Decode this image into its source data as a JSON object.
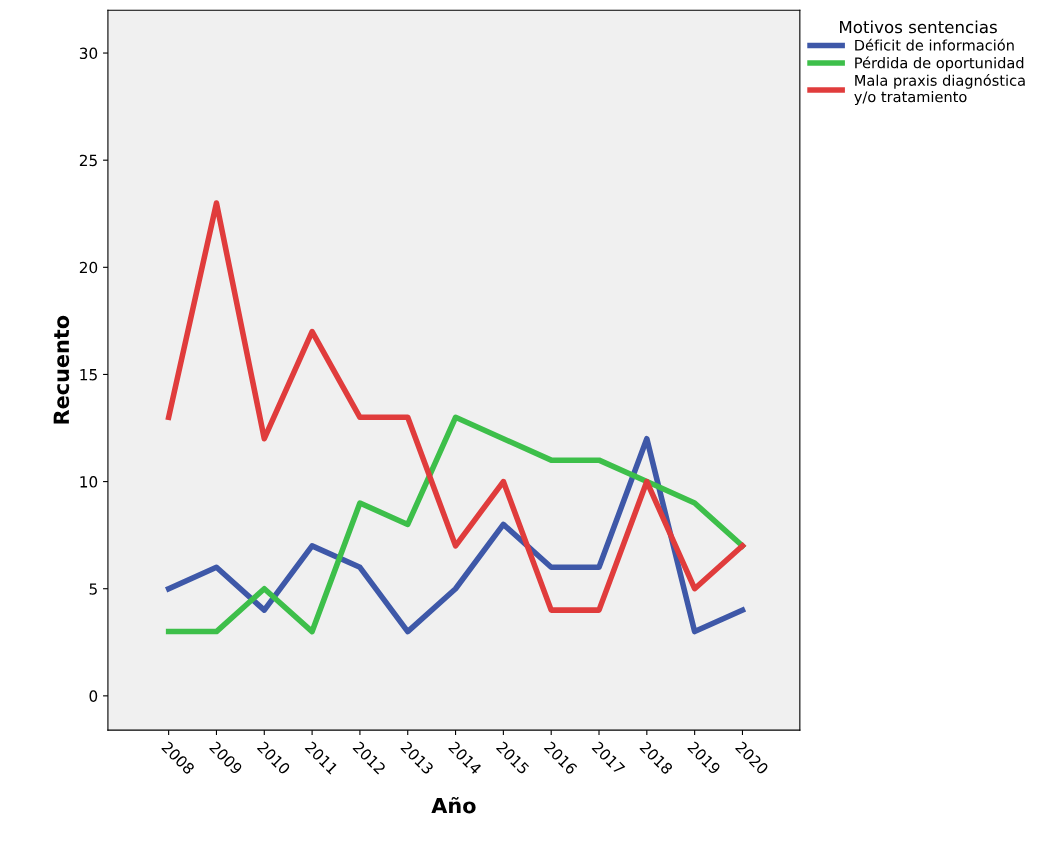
{
  "chart_data": {
    "type": "line",
    "xlabel": "Año",
    "ylabel": "Recuento",
    "legend_title": "Motivos sentencias",
    "categories": [
      "2008",
      "2009",
      "2010",
      "2011",
      "2012",
      "2013",
      "2014",
      "2015",
      "2016",
      "2017",
      "2018",
      "2019",
      "2020"
    ],
    "series": [
      {
        "name": "Déficit de información",
        "color": "#3e58a8",
        "values": [
          5,
          6,
          4,
          7,
          6,
          3,
          5,
          8,
          6,
          6,
          12,
          3,
          4
        ]
      },
      {
        "name": "Pérdida de oportunidad",
        "color": "#3dbf4a",
        "values": [
          3,
          3,
          5,
          3,
          9,
          8,
          13,
          12,
          11,
          11,
          10,
          9,
          7
        ]
      },
      {
        "name": "Mala praxis diagnóstica\ny/o tratamiento",
        "color": "#e03c3c",
        "values": [
          13,
          23,
          12,
          17,
          13,
          13,
          7,
          10,
          4,
          4,
          10,
          5,
          7
        ]
      }
    ],
    "ylim": [
      -1.6,
      32
    ],
    "yticks": [
      0,
      5,
      10,
      15,
      20,
      25,
      30
    ],
    "grid": false,
    "legend": "top right",
    "marker": "none",
    "line_style": "solid"
  }
}
